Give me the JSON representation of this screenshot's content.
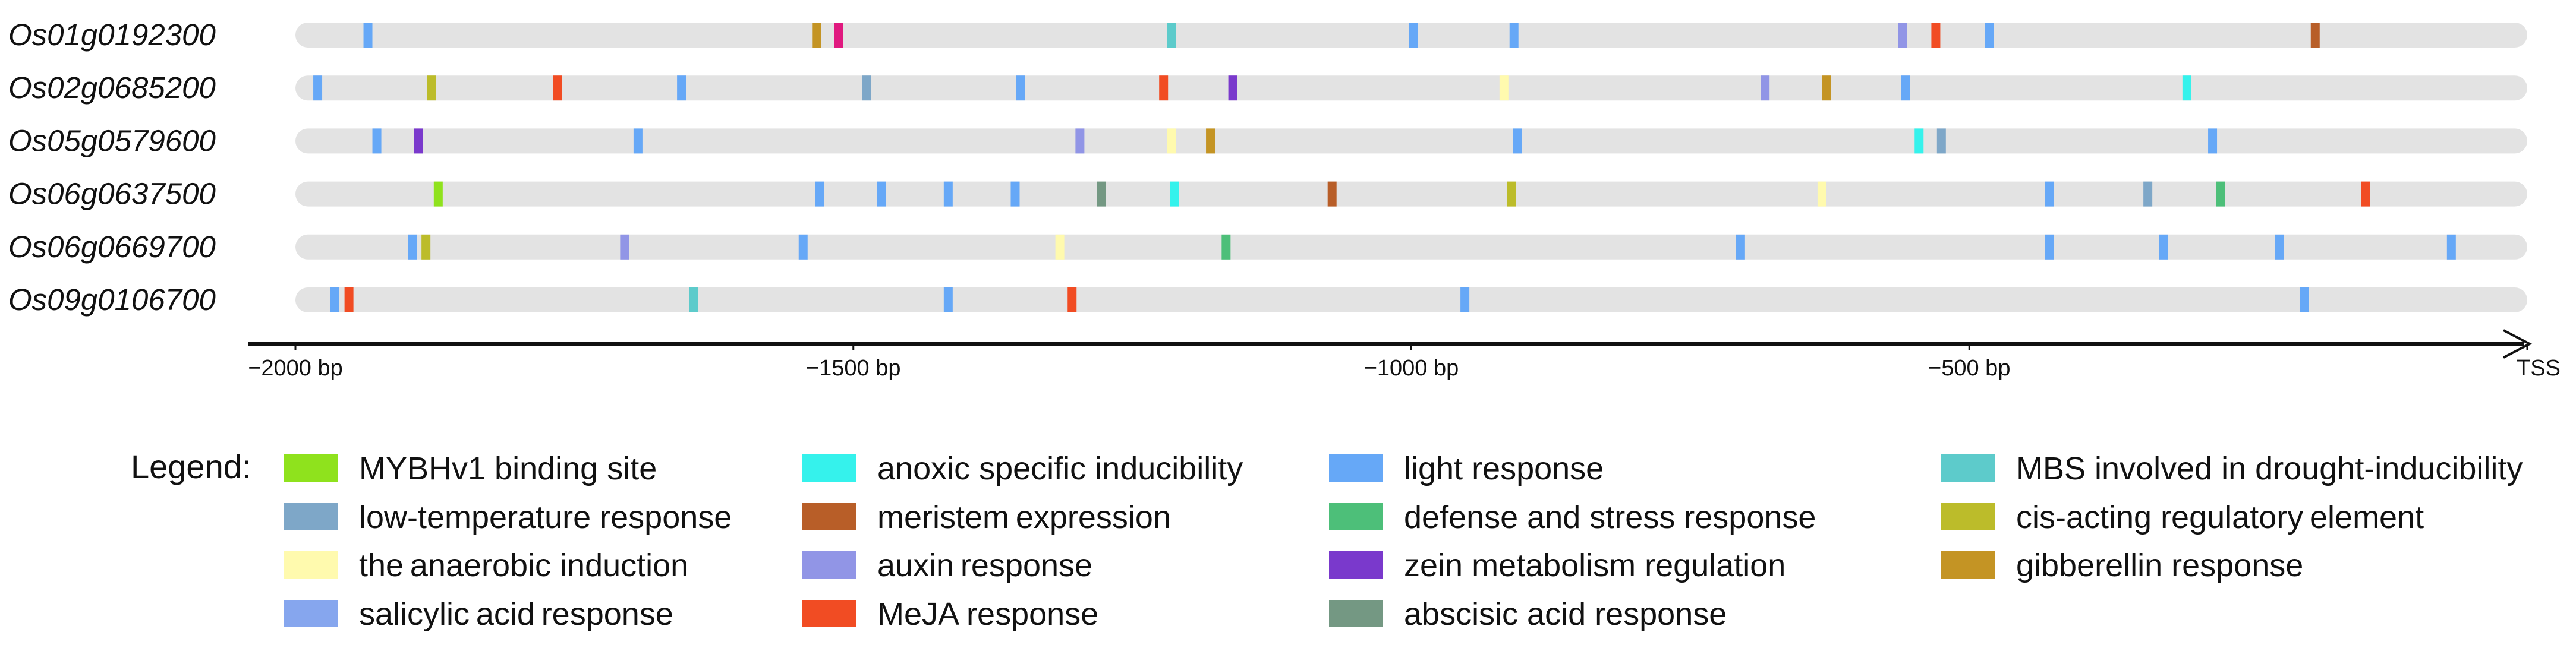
{
  "chart_data": {
    "type": "promoter-element-map",
    "xlim": [
      -2000,
      0
    ],
    "x_unit": "bp",
    "ticks": [
      {
        "value": -2000,
        "label": "−2000 bp"
      },
      {
        "value": -1500,
        "label": "−1500 bp"
      },
      {
        "value": -1000,
        "label": "−1000 bp"
      },
      {
        "value": -500,
        "label": "−500 bp"
      },
      {
        "value": 0,
        "label": "TSS"
      }
    ],
    "legend_title": "Legend:",
    "categories": [
      {
        "key": "mybhv1",
        "label": "MYBHv1 binding site",
        "color": "#8fe21d"
      },
      {
        "key": "lowtemp",
        "label": "low-temperature response",
        "color": "#7ea7c8"
      },
      {
        "key": "anaerobic",
        "label": "the anaerobic induction",
        "color": "#fffaae"
      },
      {
        "key": "salicylic",
        "label": "salicylic acid response",
        "color": "#86a6ee"
      },
      {
        "key": "anoxic",
        "label": "anoxic specific inducibility",
        "color": "#35f2ec"
      },
      {
        "key": "meristem",
        "label": "meristem expression",
        "color": "#b85e28"
      },
      {
        "key": "auxin",
        "label": "auxin response",
        "color": "#9195e6"
      },
      {
        "key": "meja",
        "label": "MeJA response",
        "color": "#f14c23"
      },
      {
        "key": "light",
        "label": "light response",
        "color": "#66a8f7"
      },
      {
        "key": "defense",
        "label": "defense and stress response",
        "color": "#4dbf79"
      },
      {
        "key": "zein",
        "label": "zein metabolism regulation",
        "color": "#7a39cc"
      },
      {
        "key": "abscisic",
        "label": "abscisic acid response",
        "color": "#749883"
      },
      {
        "key": "mbs",
        "label": "MBS involved in drought-inducibility",
        "color": "#5dcbcb"
      },
      {
        "key": "cisreg",
        "label": "cis-acting regulatory element",
        "color": "#bcbc2a"
      },
      {
        "key": "gibberellin",
        "label": "gibberellin response",
        "color": "#c49424"
      },
      {
        "key": "pink",
        "label": "",
        "color": "#e0197f"
      }
    ],
    "genes": [
      {
        "name": "Os01g0192300",
        "elements": [
          {
            "pos": -1935,
            "type": "light"
          },
          {
            "pos": -1533,
            "type": "gibberellin"
          },
          {
            "pos": -1513,
            "type": "pink"
          },
          {
            "pos": -1215,
            "type": "mbs"
          },
          {
            "pos": -998,
            "type": "light"
          },
          {
            "pos": -908,
            "type": "light"
          },
          {
            "pos": -560,
            "type": "auxin"
          },
          {
            "pos": -530,
            "type": "meja"
          },
          {
            "pos": -482,
            "type": "light"
          },
          {
            "pos": -190,
            "type": "meristem"
          }
        ]
      },
      {
        "name": "Os02g0685200",
        "elements": [
          {
            "pos": -1980,
            "type": "light"
          },
          {
            "pos": -1878,
            "type": "cisreg"
          },
          {
            "pos": -1765,
            "type": "meja"
          },
          {
            "pos": -1654,
            "type": "light"
          },
          {
            "pos": -1488,
            "type": "lowtemp"
          },
          {
            "pos": -1350,
            "type": "light"
          },
          {
            "pos": -1222,
            "type": "meja"
          },
          {
            "pos": -1160,
            "type": "zein"
          },
          {
            "pos": -917,
            "type": "anaerobic"
          },
          {
            "pos": -683,
            "type": "auxin"
          },
          {
            "pos": -628,
            "type": "gibberellin"
          },
          {
            "pos": -557,
            "type": "light"
          },
          {
            "pos": -305,
            "type": "anoxic"
          }
        ]
      },
      {
        "name": "Os05g0579600",
        "elements": [
          {
            "pos": -1927,
            "type": "light"
          },
          {
            "pos": -1890,
            "type": "zein"
          },
          {
            "pos": -1693,
            "type": "light"
          },
          {
            "pos": -1297,
            "type": "auxin"
          },
          {
            "pos": -1215,
            "type": "anaerobic"
          },
          {
            "pos": -1180,
            "type": "gibberellin"
          },
          {
            "pos": -905,
            "type": "light"
          },
          {
            "pos": -545,
            "type": "anoxic"
          },
          {
            "pos": -525,
            "type": "lowtemp"
          },
          {
            "pos": -282,
            "type": "light"
          }
        ]
      },
      {
        "name": "Os06g0637500",
        "elements": [
          {
            "pos": -1872,
            "type": "mybhv1"
          },
          {
            "pos": -1530,
            "type": "light"
          },
          {
            "pos": -1475,
            "type": "light"
          },
          {
            "pos": -1415,
            "type": "light"
          },
          {
            "pos": -1355,
            "type": "light"
          },
          {
            "pos": -1278,
            "type": "abscisic"
          },
          {
            "pos": -1212,
            "type": "anoxic"
          },
          {
            "pos": -1071,
            "type": "meristem"
          },
          {
            "pos": -910,
            "type": "cisreg"
          },
          {
            "pos": -632,
            "type": "anaerobic"
          },
          {
            "pos": -428,
            "type": "light"
          },
          {
            "pos": -340,
            "type": "lowtemp"
          },
          {
            "pos": -275,
            "type": "defense"
          },
          {
            "pos": -145,
            "type": "meja"
          }
        ]
      },
      {
        "name": "Os06g0669700",
        "elements": [
          {
            "pos": -1895,
            "type": "light"
          },
          {
            "pos": -1883,
            "type": "cisreg"
          },
          {
            "pos": -1705,
            "type": "auxin"
          },
          {
            "pos": -1545,
            "type": "light"
          },
          {
            "pos": -1315,
            "type": "anaerobic"
          },
          {
            "pos": -1166,
            "type": "defense"
          },
          {
            "pos": -705,
            "type": "light"
          },
          {
            "pos": -428,
            "type": "light"
          },
          {
            "pos": -326,
            "type": "light"
          },
          {
            "pos": -222,
            "type": "light"
          },
          {
            "pos": -68,
            "type": "light"
          }
        ]
      },
      {
        "name": "Os09g0106700",
        "elements": [
          {
            "pos": -1965,
            "type": "light"
          },
          {
            "pos": -1952,
            "type": "meja"
          },
          {
            "pos": -1643,
            "type": "mbs"
          },
          {
            "pos": -1415,
            "type": "light"
          },
          {
            "pos": -1304,
            "type": "meja"
          },
          {
            "pos": -952,
            "type": "light"
          },
          {
            "pos": -200,
            "type": "light"
          }
        ]
      }
    ]
  }
}
